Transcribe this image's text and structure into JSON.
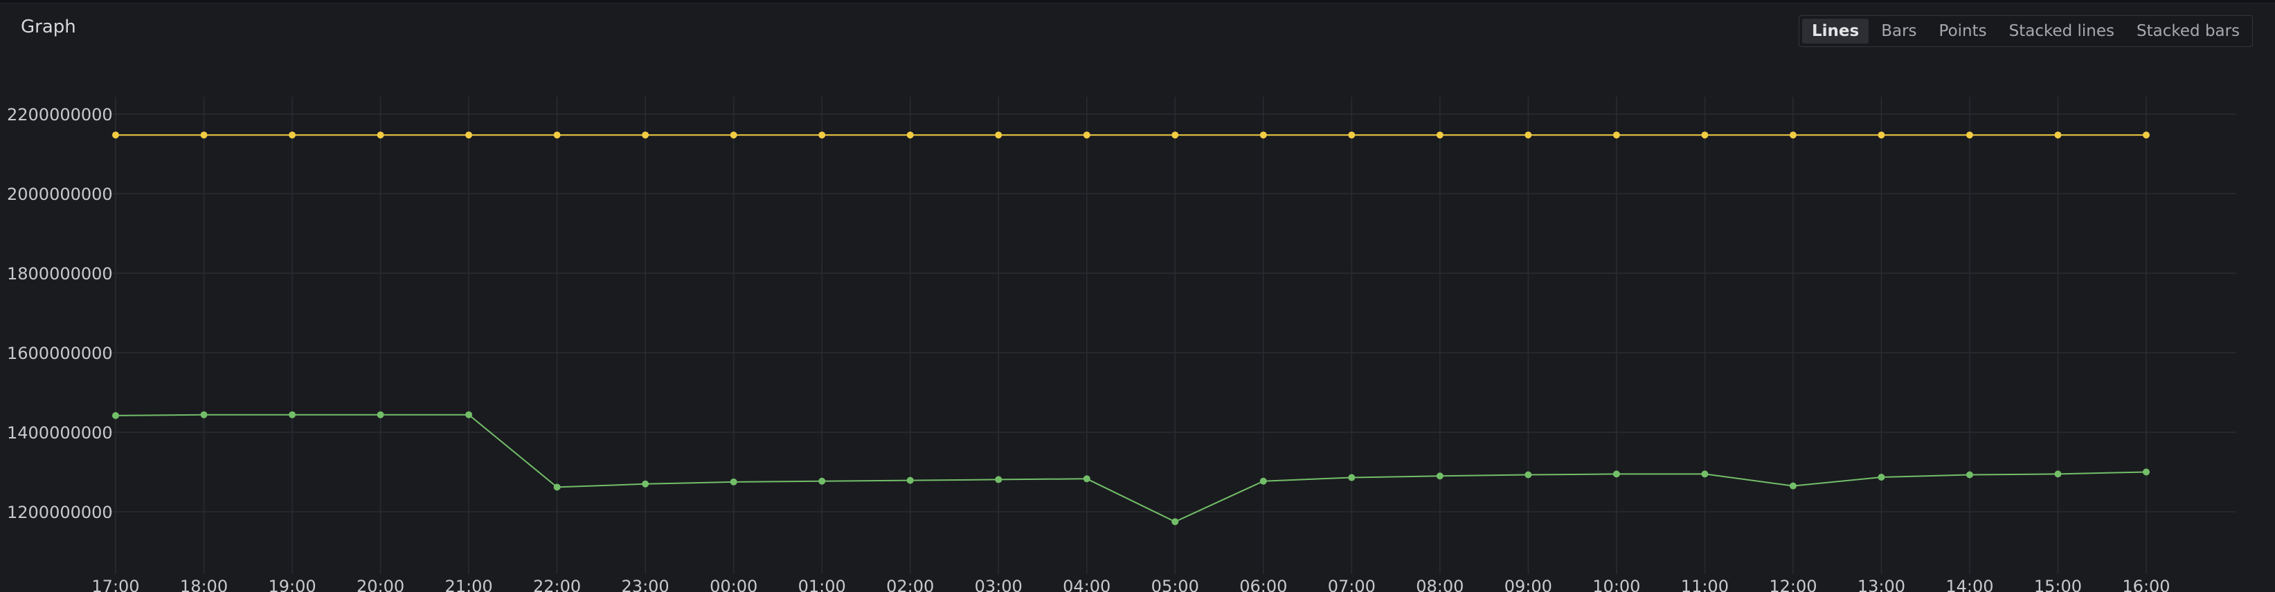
{
  "panel": {
    "title": "Graph",
    "modes": [
      "Lines",
      "Bars",
      "Points",
      "Stacked lines",
      "Stacked bars"
    ],
    "active_mode": "Lines"
  },
  "colors": {
    "background": "#1a1b1f",
    "grid": "#2a2c31",
    "series_yellow": "#f2cc43",
    "series_green": "#73bf69"
  },
  "chart_data": {
    "type": "line",
    "title": "",
    "xlabel": "",
    "ylabel": "",
    "x": [
      "17:00",
      "18:00",
      "19:00",
      "20:00",
      "21:00",
      "22:00",
      "23:00",
      "00:00",
      "01:00",
      "02:00",
      "03:00",
      "04:00",
      "05:00",
      "06:00",
      "07:00",
      "08:00",
      "09:00",
      "10:00",
      "11:00",
      "12:00",
      "13:00",
      "14:00",
      "15:00",
      "16:00"
    ],
    "y_ticks": [
      1200000000,
      1400000000,
      1600000000,
      1800000000,
      2000000000,
      2200000000
    ],
    "y_tick_labels": [
      "1200000000",
      "1400000000",
      "1600000000",
      "1800000000",
      "2000000000",
      "2200000000"
    ],
    "ylim": [
      1100000000,
      2250000000
    ],
    "grid": true,
    "legend": "none",
    "series": [
      {
        "color": "#f2cc43",
        "values": [
          2147483648,
          2147483648,
          2147483648,
          2147483648,
          2147483648,
          2147483648,
          2147483648,
          2147483648,
          2147483648,
          2147483648,
          2147483648,
          2147483648,
          2147483648,
          2147483648,
          2147483648,
          2147483648,
          2147483648,
          2147483648,
          2147483648,
          2147483648,
          2147483648,
          2147483648,
          2147483648,
          2147483648
        ]
      },
      {
        "color": "#73bf69",
        "values": [
          1442000000,
          1444000000,
          1444000000,
          1444000000,
          1444000000,
          1262000000,
          1270000000,
          1275000000,
          1277000000,
          1279000000,
          1281000000,
          1283000000,
          1175000000,
          1277000000,
          1286000000,
          1290000000,
          1293000000,
          1295000000,
          1295000000,
          1265000000,
          1287000000,
          1293000000,
          1295000000,
          1300000000
        ]
      }
    ]
  }
}
